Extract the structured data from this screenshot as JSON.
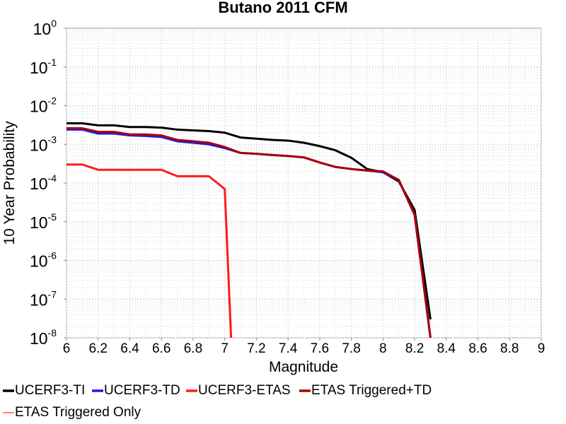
{
  "chart_data": {
    "type": "line",
    "title": "Butano 2011 CFM",
    "xlabel": "Magnitude",
    "ylabel": "10 Year Probability",
    "xlim": [
      6,
      9
    ],
    "ylim": [
      1e-08,
      1
    ],
    "yscale": "log",
    "grid": true,
    "legend_position": "bottom",
    "x_ticks": [
      "6",
      "6.2",
      "6.4",
      "6.6",
      "6.8",
      "7",
      "7.2",
      "7.4",
      "7.6",
      "7.8",
      "8",
      "8.2",
      "8.4",
      "8.6",
      "8.8",
      "9"
    ],
    "y_ticks": [
      {
        "base": "10",
        "exp": "0"
      },
      {
        "base": "10",
        "exp": "-1"
      },
      {
        "base": "10",
        "exp": "-2"
      },
      {
        "base": "10",
        "exp": "-3"
      },
      {
        "base": "10",
        "exp": "-4"
      },
      {
        "base": "10",
        "exp": "-5"
      },
      {
        "base": "10",
        "exp": "-6"
      },
      {
        "base": "10",
        "exp": "-7"
      },
      {
        "base": "10",
        "exp": "-8"
      }
    ],
    "series": [
      {
        "name": "UCERF3-TI",
        "color": "#000000",
        "x": [
          6.0,
          6.1,
          6.2,
          6.3,
          6.4,
          6.5,
          6.6,
          6.7,
          6.8,
          6.9,
          7.0,
          7.1,
          7.2,
          7.3,
          7.4,
          7.5,
          7.6,
          7.7,
          7.8,
          7.9,
          8.0,
          8.1,
          8.2,
          8.3
        ],
        "y": [
          0.0035,
          0.0035,
          0.0031,
          0.0031,
          0.0028,
          0.0028,
          0.0027,
          0.0024,
          0.0023,
          0.0022,
          0.002,
          0.0015,
          0.0014,
          0.0013,
          0.00125,
          0.0011,
          0.0009,
          0.0007,
          0.00045,
          0.00023,
          0.00019,
          0.00011,
          2e-05,
          3e-08
        ]
      },
      {
        "name": "UCERF3-TD",
        "color": "#1a1aee",
        "x": [
          6.0,
          6.1,
          6.2,
          6.3,
          6.4,
          6.5,
          6.6,
          6.7,
          6.8,
          6.9,
          7.0,
          7.1,
          7.2,
          7.3,
          7.4,
          7.5,
          7.6,
          7.7,
          7.8,
          7.9,
          8.0,
          8.1,
          8.2,
          8.3
        ],
        "y": [
          0.0024,
          0.0024,
          0.0019,
          0.0019,
          0.0017,
          0.00165,
          0.00155,
          0.0012,
          0.0011,
          0.001,
          0.0008,
          0.0006,
          0.00057,
          0.00053,
          0.0005,
          0.00046,
          0.00034,
          0.00026,
          0.00023,
          0.00021,
          0.00019,
          0.00012,
          1.5e-05,
          1e-08
        ]
      },
      {
        "name": "UCERF3-ETAS",
        "color": "#ff1a1a",
        "x": [
          6.0,
          6.1,
          6.2,
          6.3,
          6.4,
          6.5,
          6.6,
          6.7,
          6.8,
          6.9,
          7.0,
          7.04
        ],
        "y": [
          0.0003,
          0.0003,
          0.00022,
          0.00022,
          0.00022,
          0.00022,
          0.00022,
          0.00015,
          0.00015,
          0.00015,
          7e-05,
          1e-08
        ]
      },
      {
        "name": "ETAS Triggered+TD",
        "color": "#aa0000",
        "x": [
          6.0,
          6.1,
          6.2,
          6.3,
          6.4,
          6.5,
          6.6,
          6.7,
          6.8,
          6.9,
          7.0,
          7.1,
          7.2,
          7.3,
          7.4,
          7.5,
          7.6,
          7.7,
          7.8,
          7.9,
          8.0,
          8.1,
          8.2,
          8.3
        ],
        "y": [
          0.0026,
          0.0026,
          0.0021,
          0.0021,
          0.0018,
          0.0018,
          0.0017,
          0.0013,
          0.0012,
          0.0011,
          0.00085,
          0.0006,
          0.00057,
          0.00053,
          0.0005,
          0.00046,
          0.00034,
          0.00026,
          0.00023,
          0.00021,
          0.0002,
          0.00012,
          1.5e-05,
          1e-08
        ]
      },
      {
        "name": "ETAS Triggered Only",
        "color": "#ff8080",
        "x": [],
        "y": []
      }
    ]
  }
}
